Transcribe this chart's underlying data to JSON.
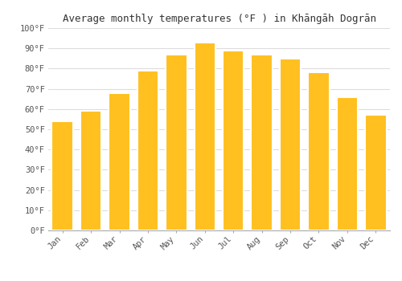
{
  "title": "Average monthly temperatures (°F ) in Khāngāh Dogrān",
  "months": [
    "Jan",
    "Feb",
    "Mar",
    "Apr",
    "May",
    "Jun",
    "Jul",
    "Aug",
    "Sep",
    "Oct",
    "Nov",
    "Dec"
  ],
  "values": [
    54,
    59,
    68,
    79,
    87,
    93,
    89,
    87,
    85,
    78,
    66,
    57
  ],
  "bar_color": "#FFC020",
  "bar_edge_color": "#FFC020",
  "background_color": "#ffffff",
  "grid_color": "#dddddd",
  "yticks": [
    0,
    10,
    20,
    30,
    40,
    50,
    60,
    70,
    80,
    90,
    100
  ],
  "ytick_labels": [
    "0°F",
    "10°F",
    "20°F",
    "30°F",
    "40°F",
    "50°F",
    "60°F",
    "70°F",
    "80°F",
    "90°F",
    "100°F"
  ],
  "ylim": [
    0,
    100
  ],
  "title_fontsize": 9,
  "tick_fontsize": 7.5
}
